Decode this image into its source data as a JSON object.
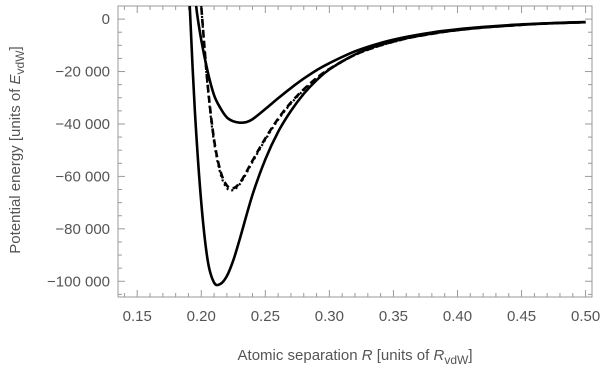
{
  "chart_data": {
    "type": "line",
    "xlabel": {
      "prefix": "Atomic separation ",
      "var": "R",
      "middle": "  [units of ",
      "sym": "R",
      "sub": "vdW",
      "suffix": "]"
    },
    "ylabel": {
      "prefix": "Potential energy  [units of ",
      "sym": "E",
      "sub": "vdW",
      "suffix": "]"
    },
    "xlim": [
      0.135,
      0.505
    ],
    "ylim": [
      -106000,
      5000
    ],
    "xticks": [
      0.15,
      0.2,
      0.25,
      0.3,
      0.35,
      0.4,
      0.45,
      0.5
    ],
    "xtick_labels": [
      "0.15",
      "0.20",
      "0.25",
      "0.30",
      "0.35",
      "0.40",
      "0.45",
      "0.50"
    ],
    "yticks": [
      0,
      -20000,
      -40000,
      -60000,
      -80000,
      -100000
    ],
    "ytick_labels": [
      "0",
      "−20 000",
      "−40 000",
      "−60 000",
      "−80 000",
      "−100 000"
    ],
    "series": [
      {
        "style": "solid",
        "x": [
          0.196,
          0.2,
          0.205,
          0.21,
          0.215,
          0.22,
          0.225,
          0.23,
          0.235,
          0.24,
          0.25,
          0.26,
          0.27,
          0.28,
          0.29,
          0.3,
          0.32,
          0.34,
          0.36,
          0.38,
          0.4,
          0.42,
          0.44,
          0.46,
          0.48,
          0.5
        ],
        "y": [
          5000,
          -8000,
          -20000,
          -29000,
          -34000,
          -37500,
          -39000,
          -39500,
          -39300,
          -38200,
          -34300,
          -30200,
          -26300,
          -22700,
          -19500,
          -16800,
          -12300,
          -9100,
          -6800,
          -5100,
          -3900,
          -3000,
          -2300,
          -1800,
          -1400,
          -1100
        ]
      },
      {
        "style": "solid",
        "x": [
          0.191,
          0.195,
          0.2,
          0.205,
          0.21,
          0.215,
          0.22,
          0.225,
          0.23,
          0.24,
          0.25,
          0.26,
          0.27,
          0.28,
          0.29,
          0.3,
          0.32,
          0.34,
          0.36,
          0.38,
          0.4,
          0.42,
          0.44,
          0.46,
          0.48,
          0.5
        ],
        "y": [
          5000,
          -35000,
          -70000,
          -92000,
          -100500,
          -101000,
          -98000,
          -92000,
          -84000,
          -67000,
          -53500,
          -43000,
          -35000,
          -28500,
          -23300,
          -19200,
          -13500,
          -9800,
          -7300,
          -5500,
          -4200,
          -3200,
          -2500,
          -1900,
          -1500,
          -1200
        ]
      },
      {
        "style": "dashed",
        "x": [
          0.2,
          0.205,
          0.21,
          0.215,
          0.22,
          0.225,
          0.23,
          0.235,
          0.24,
          0.25,
          0.26,
          0.27,
          0.28,
          0.29,
          0.3,
          0.32,
          0.34,
          0.36,
          0.38,
          0.4,
          0.42,
          0.44,
          0.46,
          0.48,
          0.5
        ],
        "y": [
          5000,
          -25000,
          -46000,
          -58000,
          -63500,
          -64500,
          -62500,
          -58500,
          -54000,
          -45500,
          -38000,
          -31800,
          -26800,
          -22500,
          -19000,
          -13600,
          -10000,
          -7400,
          -5600,
          -4200,
          -3200,
          -2500,
          -1900,
          -1500,
          -1200
        ]
      },
      {
        "style": "dotted",
        "x": [
          0.2,
          0.205,
          0.21,
          0.215,
          0.22,
          0.225,
          0.23,
          0.235,
          0.24,
          0.25,
          0.26,
          0.27,
          0.28,
          0.29,
          0.3,
          0.32,
          0.34,
          0.36
        ],
        "y": [
          5000,
          -26000,
          -47000,
          -59000,
          -64500,
          -65200,
          -63000,
          -59000,
          -54500,
          -46000,
          -38400,
          -32200,
          -27100,
          -22700,
          -19200,
          -13700,
          -10100,
          -7450
        ]
      }
    ]
  }
}
